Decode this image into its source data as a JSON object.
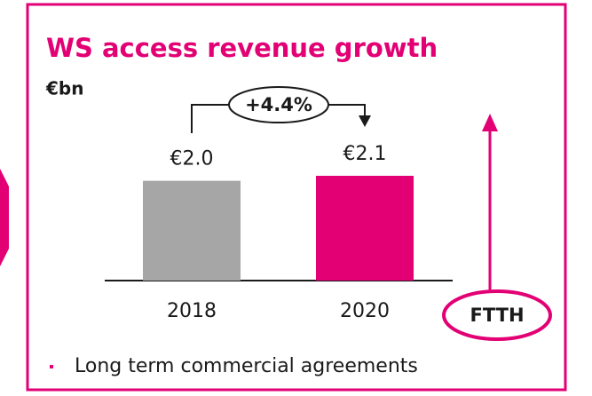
{
  "chart_data": {
    "type": "bar",
    "title": "WS access revenue growth",
    "subtitle": "€bn",
    "categories": [
      "2018",
      "2020"
    ],
    "values": [
      2.0,
      2.1
    ],
    "value_labels": [
      "€2.0",
      "€2.1"
    ],
    "colors": [
      "#a6a6a6",
      "#e20074"
    ],
    "growth_annotation": "+4.4%",
    "side_annotation": "FTTH",
    "bullets": [
      "Long term commercial agreements"
    ]
  }
}
